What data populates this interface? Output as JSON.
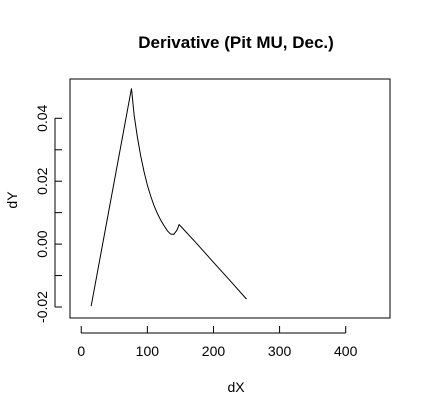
{
  "chart_data": {
    "type": "line",
    "title": "Derivative (Pit MU, Dec.)",
    "xlabel": "dX",
    "ylabel": "dY",
    "xlim": [
      -17,
      467
    ],
    "ylim": [
      -0.0235,
      0.0525
    ],
    "xticks": [
      0,
      100,
      200,
      300,
      400
    ],
    "xtick_labels": [
      "0",
      "100",
      "200",
      "300",
      "400"
    ],
    "yticks": [
      -0.02,
      -0.01,
      0.0,
      0.01,
      0.02,
      0.03,
      0.04
    ],
    "ytick_labels": [
      "-0.02",
      "",
      "0.00",
      "",
      "0.02",
      "",
      "0.04"
    ],
    "grid": false,
    "series": [
      {
        "x": [
          15,
          76,
          80,
          85,
          90,
          95,
          100,
          105,
          110,
          115,
          120,
          125,
          130,
          135,
          140,
          145,
          148,
          150,
          175,
          200,
          225,
          250
        ],
        "values": [
          -0.0197,
          0.0495,
          0.041,
          0.0339,
          0.028,
          0.023,
          0.0188,
          0.0153,
          0.0123,
          0.0098,
          0.0077,
          0.0059,
          0.0043,
          0.0032,
          0.0031,
          0.0045,
          0.0062,
          0.0058,
          0.0001,
          -0.0058,
          -0.0116,
          -0.0175
        ]
      }
    ]
  }
}
